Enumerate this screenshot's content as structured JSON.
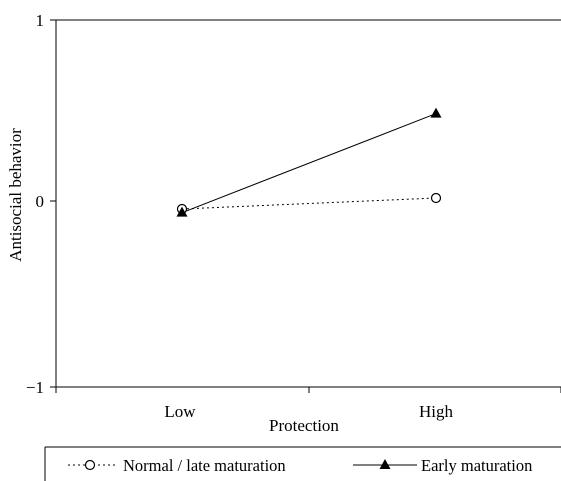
{
  "chart_data": {
    "type": "line",
    "categories": [
      "Low",
      "High"
    ],
    "xlabel": "Protection",
    "ylabel": "Antisocial behavior",
    "ylim": [
      -1,
      1
    ],
    "yticks": [
      "1",
      "0",
      "−1"
    ],
    "ytick_values": [
      1,
      0,
      -1
    ],
    "grid": false,
    "legend_position": "bottom",
    "series": [
      {
        "name": "Normal / late maturation",
        "values": [
          -0.03,
          0.03
        ],
        "line_style": "dotted",
        "marker": "open-circle",
        "color": "#000000"
      },
      {
        "name": "Early maturation",
        "values": [
          -0.05,
          0.49
        ],
        "line_style": "solid",
        "marker": "filled-triangle",
        "color": "#000000"
      }
    ]
  }
}
